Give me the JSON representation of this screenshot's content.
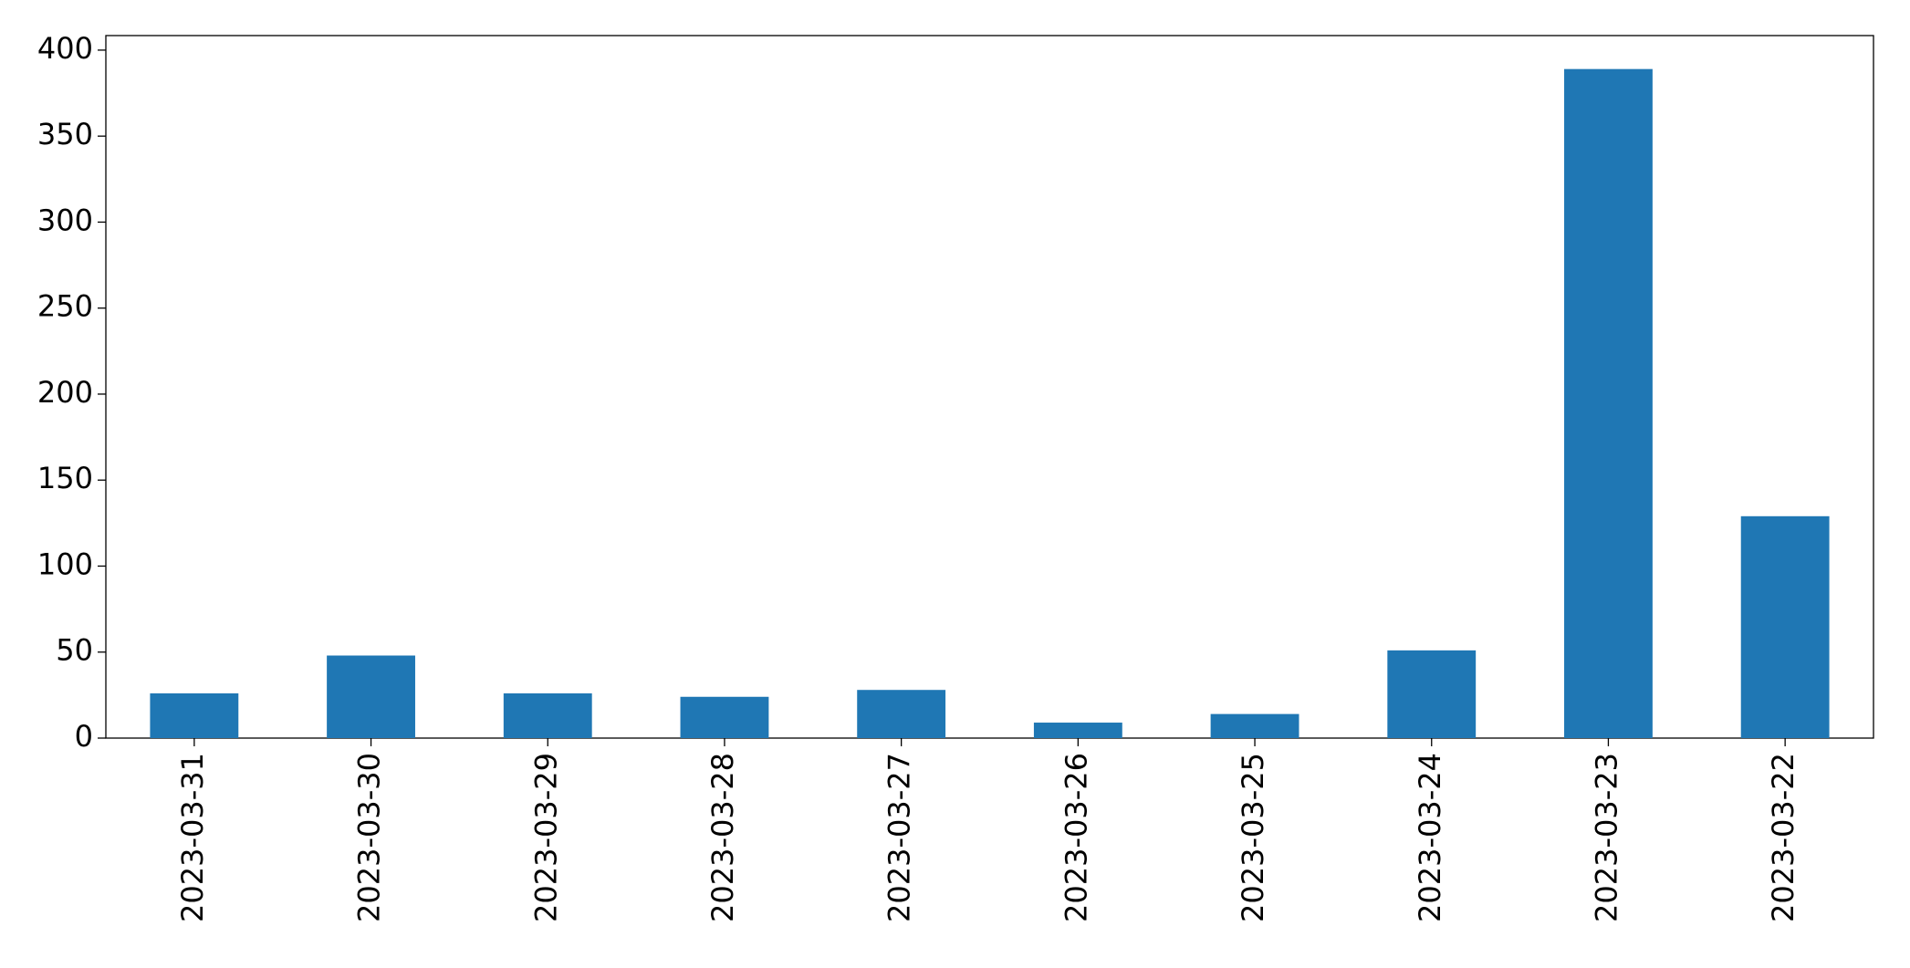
{
  "chart_data": {
    "type": "bar",
    "categories": [
      "2023-03-31",
      "2023-03-30",
      "2023-03-29",
      "2023-03-28",
      "2023-03-27",
      "2023-03-26",
      "2023-03-25",
      "2023-03-24",
      "2023-03-23",
      "2023-03-22"
    ],
    "values": [
      26,
      48,
      26,
      24,
      28,
      9,
      14,
      51,
      389,
      129
    ],
    "color": "#1f77b4",
    "ylim": [
      0,
      408.45
    ],
    "yticks": [
      0,
      50,
      100,
      150,
      200,
      250,
      300,
      350,
      400
    ],
    "grid": false
  }
}
